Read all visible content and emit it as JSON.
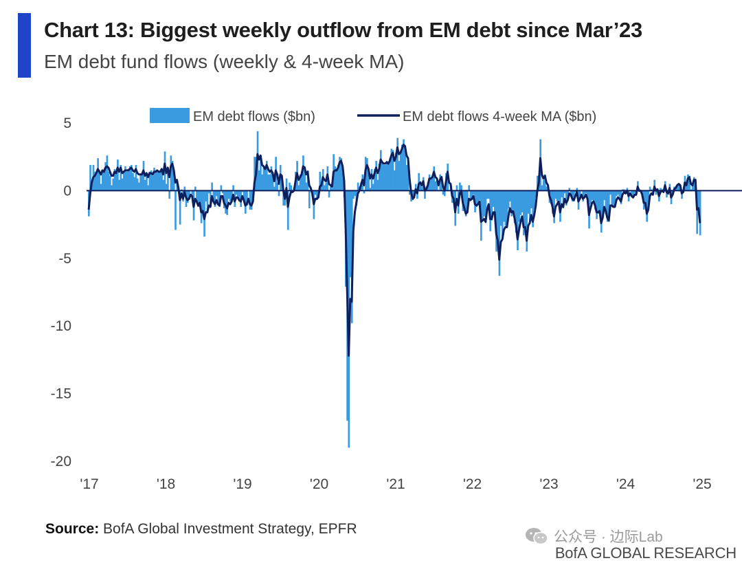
{
  "header": {
    "title": "Chart 13: Biggest weekly outflow from EM debt since Mar’23",
    "subtitle": "EM debt fund flows (weekly & 4-week MA)"
  },
  "footer": {
    "source_label": "Source:",
    "source_text": " BofA Global Investment Strategy, EPFR",
    "watermark": "公众号 · 边际Lab",
    "brand": "BofA GLOBAL RESEARCH"
  },
  "colors": {
    "accent": "#1f44c9",
    "bars": "#3b9be0",
    "ma_line": "#0d1f5c",
    "zero_line": "#0d1f5c"
  },
  "chart_data": {
    "type": "bar+line",
    "title": "EM debt fund flows (weekly & 4-week MA)",
    "xlabel": "",
    "ylabel": "",
    "ylim": [
      -20,
      5
    ],
    "yticks": [
      5,
      0,
      -5,
      -10,
      -15,
      -20
    ],
    "ytick_labels": [
      "5",
      "0",
      "-5",
      "-10",
      "-15",
      "-20"
    ],
    "xlim": [
      2017,
      2025
    ],
    "xticks": [
      2017,
      2018,
      2019,
      2020,
      2021,
      2022,
      2023,
      2024,
      2025
    ],
    "xtick_labels": [
      "'17",
      "'18",
      "'19",
      "'20",
      "'21",
      "'22",
      "'23",
      "'24",
      "'25"
    ],
    "legend": {
      "position": "top",
      "entries": [
        "EM debt flows ($bn)",
        "EM debt flows 4-week MA ($bn)"
      ]
    },
    "series": [
      {
        "name": "EM debt flows ($bn)",
        "type": "bar",
        "frequency": "weekly",
        "start": 2017.0,
        "values": [
          -1.9,
          1.9,
          0.5,
          1.9,
          1.4,
          1.2,
          2.4,
          1.5,
          0.5,
          1.5,
          1.5,
          2.1,
          2.6,
          1.4,
          1.1,
          0.4,
          0.9,
          1.6,
          1.3,
          2.3,
          0.8,
          1.9,
          0.9,
          1.4,
          1.8,
          1.4,
          1.6,
          1.8,
          1.9,
          1.3,
          1.0,
          1.9,
          0.9,
          0.6,
          1.2,
          1.2,
          2.2,
          0.8,
          1.3,
          0.4,
          1.4,
          1.5,
          1.1,
          1.7,
          1.5,
          1.5,
          1.4,
          1.4,
          1.6,
          0.8,
          2.9,
          0.5,
          1.7,
          -0.6,
          2.6,
          2.2,
          1.3,
          -2.9,
          0.7,
          0.2,
          -2.5,
          0.1,
          -0.8,
          0.3,
          -1.2,
          -0.9,
          -0.5,
          0.0,
          -0.3,
          -2.2,
          0.3,
          -0.8,
          -1.2,
          -0.9,
          -2.4,
          -1.5,
          -3.4,
          -0.8,
          -1.6,
          -0.2,
          -1.2,
          0.6,
          -0.7,
          -1.2,
          -0.4,
          -1.0,
          -1.2,
          0.4,
          -0.2,
          -1.3,
          -1.7,
          -1.8,
          -0.6,
          -0.8,
          -0.6,
          0.4,
          -1.2,
          -0.3,
          -0.5,
          -0.8,
          -1.2,
          -0.1,
          -0.8,
          -1.7,
          -1.1,
          0.0,
          -1.4,
          -1.4,
          -0.7,
          2.5,
          2.5,
          4.4,
          1.5,
          2.6,
          1.2,
          1.7,
          1.7,
          2.2,
          1.2,
          1.2,
          1.8,
          1.2,
          0.3,
          2.5,
          0.6,
          -0.4,
          1.9,
          0.9,
          -1.1,
          -1.1,
          0.9,
          -2.9,
          0.6,
          0.4,
          -0.1,
          0.2,
          1.4,
          2.2,
          0.4,
          1.2,
          1.4,
          2.6,
          1.8,
          0.6,
          1.5,
          -1.3,
          0.0,
          -0.2,
          -2.1,
          -0.3,
          -0.7,
          -0.4,
          1.4,
          0.4,
          1.6,
          0.4,
          0.6,
          1.8,
          -0.5,
          0.3,
          0.2,
          2.7,
          1.8,
          1.5,
          1.9,
          2.5,
          2.4,
          1.3,
          -0.5,
          -7.1,
          -17.0,
          -19.0,
          -6.4,
          -9.8,
          -0.6,
          -0.4,
          -1.1,
          0.6,
          0.3,
          0.6,
          1.2,
          -0.2,
          2.5,
          2.4,
          1.3,
          0.2,
          1.6,
          0.5,
          1.6,
          2.2,
          0.8,
          2.0,
          3.0,
          2.0,
          1.9,
          1.9,
          2.2,
          2.0,
          2.4,
          3.1,
          3.0,
          1.5,
          2.8,
          3.9,
          2.2,
          2.8,
          3.4,
          3.8,
          3.3,
          1.9,
          2.4,
          -0.3,
          -0.8,
          -0.7,
          -0.3,
          0.5,
          -0.6,
          1.3,
          0.7,
          0.3,
          1.0,
          -0.6,
          0.3,
          0.6,
          1.2,
          0.9,
          1.0,
          1.8,
          0.7,
          0.8,
          0.0,
          1.2,
          1.1,
          -0.3,
          -0.4,
          1.3,
          2.0,
          0.0,
          0.5,
          -0.9,
          -0.6,
          -2.6,
          0.4,
          -1.7,
          0.6,
          0.4,
          -1.5,
          -1.5,
          -1.9,
          -1.6,
          0.4,
          -0.7,
          -0.5,
          -0.3,
          -1.6,
          -1.2,
          -0.9,
          -0.7,
          -3.7,
          -2.1,
          -1.9,
          -2.4,
          -0.6,
          -0.6,
          -3.0,
          -2.2,
          -1.2,
          -1.6,
          -4.5,
          -4.2,
          -6.3,
          -2.6,
          -3.4,
          -2.3,
          -2.6,
          -2.7,
          -1.3,
          -0.8,
          -1.9,
          -1.4,
          -2.4,
          -3.1,
          -4.4,
          -2.3,
          -1.8,
          -1.6,
          -3.3,
          -2.8,
          -4.5,
          -1.7,
          -2.2,
          -1.3,
          -2.7,
          -1.4,
          -0.5,
          1.1,
          1.1,
          3.8,
          0.4,
          0.8,
          1.2,
          0.3,
          0.3,
          -0.9,
          -1.0,
          -1.7,
          -2.4,
          -0.6,
          -0.8,
          -0.7,
          -2.3,
          -0.5,
          -1.3,
          -0.2,
          -1.1,
          -0.6,
          0.2,
          -0.4,
          -0.8,
          -0.8,
          -0.1,
          0.2,
          -1.4,
          -0.4,
          0.0,
          -0.8,
          -0.5,
          -0.2,
          -0.8,
          -2.8,
          -1.0,
          -0.7,
          -0.8,
          -1.4,
          -2.1,
          -1.7,
          -1.5,
          -3.1,
          -1.8,
          -0.7,
          -1.7,
          -2.3,
          -2.3,
          -0.3,
          -1.1,
          -1.2,
          -1.2,
          -0.4,
          -0.3,
          -0.6,
          -1.0,
          0.1,
          0.1,
          -0.2,
          0.2,
          -0.8,
          0.0,
          -0.4,
          -0.5,
          -0.2,
          -0.3,
          0.7,
          -0.1,
          0.0,
          -0.5,
          -1.4,
          -0.9,
          -2.3,
          -1.2,
          0.3,
          0.1,
          -0.3,
          0.8,
          -0.3,
          0.1,
          -0.8,
          0.2,
          0.1,
          -0.1,
          0.7,
          -0.5,
          -0.3,
          0.5,
          -1.0,
          -0.1,
          0.3,
          0.3,
          0.4,
          0.5,
          0.4,
          -0.6,
          0.0,
          1.1,
          0.4,
          1.2,
          1.1,
          0.1,
          0.4,
          1.0,
          0.7,
          -3.2,
          -1.3,
          -3.3
        ]
      },
      {
        "name": "EM debt flows 4-week MA ($bn)",
        "type": "line",
        "frequency": "weekly",
        "start": 2017.0,
        "values": [
          -1.4,
          -0.2,
          0.6,
          1.0,
          1.1,
          1.3,
          1.6,
          1.4,
          1.2,
          1.5,
          1.4,
          1.7,
          1.8,
          1.7,
          1.4,
          1.1,
          1.1,
          1.4,
          1.3,
          1.7,
          1.4,
          1.7,
          1.3,
          1.4,
          1.5,
          1.5,
          1.5,
          1.6,
          1.7,
          1.5,
          1.4,
          1.6,
          1.3,
          1.2,
          1.2,
          1.2,
          1.5,
          1.1,
          1.3,
          1.0,
          1.3,
          1.3,
          1.2,
          1.4,
          1.4,
          1.5,
          1.4,
          1.4,
          1.6,
          1.2,
          2.0,
          1.3,
          1.7,
          1.0,
          1.8,
          2.0,
          1.5,
          0.6,
          0.8,
          0.2,
          -0.7,
          -0.2,
          -0.6,
          -0.1,
          -0.5,
          -0.7,
          -0.6,
          -0.3,
          -0.4,
          -1.2,
          -0.6,
          -0.8,
          -1.1,
          -0.9,
          -1.6,
          -1.5,
          -2.1,
          -1.6,
          -1.6,
          -1.1,
          -1.2,
          -0.4,
          -0.8,
          -1.0,
          -0.7,
          -1.0,
          -1.1,
          -0.4,
          -0.4,
          -0.9,
          -1.1,
          -1.3,
          -0.9,
          -1.0,
          -0.8,
          -0.3,
          -0.8,
          -0.5,
          -0.5,
          -0.7,
          -0.8,
          -0.4,
          -0.7,
          -1.1,
          -1.0,
          -0.6,
          -1.0,
          -1.1,
          -0.8,
          0.6,
          1.2,
          2.7,
          2.3,
          2.6,
          1.9,
          1.8,
          1.6,
          1.9,
          1.6,
          1.4,
          1.5,
          1.3,
          0.7,
          1.5,
          1.2,
          0.5,
          1.2,
          1.1,
          0.0,
          -0.6,
          0.2,
          -1.2,
          -0.5,
          -0.1,
          -0.1,
          0.0,
          0.7,
          1.3,
          0.8,
          1.0,
          1.2,
          1.8,
          1.7,
          1.2,
          1.4,
          0.4,
          0.2,
          -0.2,
          -1.0,
          -0.6,
          -0.6,
          -0.5,
          0.3,
          0.4,
          1.0,
          0.8,
          0.7,
          1.2,
          0.5,
          0.4,
          0.3,
          1.4,
          1.5,
          1.5,
          1.7,
          2.1,
          2.2,
          1.8,
          0.7,
          -2.9,
          -7.6,
          -12.2,
          -8.0,
          -8.2,
          -3.0,
          -1.6,
          -0.9,
          -0.2,
          0.0,
          0.4,
          0.8,
          0.4,
          1.5,
          1.9,
          1.6,
          0.9,
          1.2,
          0.9,
          1.3,
          1.7,
          1.3,
          1.6,
          2.3,
          2.1,
          2.0,
          2.0,
          2.1,
          2.0,
          2.2,
          2.6,
          2.8,
          2.2,
          2.5,
          3.2,
          2.7,
          2.8,
          3.1,
          3.4,
          3.3,
          2.6,
          2.4,
          0.9,
          -0.1,
          -0.6,
          -0.5,
          0.1,
          -0.2,
          0.5,
          0.6,
          0.4,
          0.7,
          0.0,
          0.1,
          0.4,
          0.9,
          0.9,
          1.0,
          1.4,
          1.0,
          0.9,
          0.4,
          0.8,
          1.0,
          0.3,
          0.0,
          0.7,
          1.4,
          0.6,
          0.5,
          -0.4,
          -0.6,
          -1.6,
          -0.6,
          -1.1,
          -0.2,
          0.0,
          -0.9,
          -1.3,
          -1.7,
          -1.6,
          -0.6,
          -0.7,
          -0.6,
          -0.4,
          -1.0,
          -1.1,
          -1.0,
          -0.8,
          -2.3,
          -2.2,
          -2.1,
          -2.3,
          -1.4,
          -1.0,
          -2.1,
          -2.1,
          -1.6,
          -1.6,
          -3.2,
          -3.7,
          -5.1,
          -3.8,
          -3.6,
          -2.9,
          -2.7,
          -2.7,
          -1.9,
          -1.3,
          -1.6,
          -1.5,
          -2.0,
          -2.6,
          -3.6,
          -2.9,
          -2.3,
          -1.9,
          -2.7,
          -2.7,
          -3.7,
          -2.6,
          -2.4,
          -1.8,
          -2.3,
          -1.8,
          -1.1,
          0.0,
          0.6,
          2.4,
          1.2,
          0.9,
          1.1,
          0.6,
          0.4,
          -0.4,
          -0.7,
          -1.2,
          -1.9,
          -1.2,
          -1.0,
          -0.8,
          -1.6,
          -1.0,
          -1.2,
          -0.6,
          -0.9,
          -0.7,
          -0.2,
          -0.3,
          -0.6,
          -0.7,
          -0.4,
          -0.1,
          -0.8,
          -0.6,
          -0.3,
          -0.6,
          -0.5,
          -0.3,
          -0.6,
          -1.8,
          -1.3,
          -0.9,
          -0.8,
          -1.1,
          -1.6,
          -1.6,
          -1.5,
          -2.4,
          -2.0,
          -1.2,
          -1.5,
          -2.0,
          -2.2,
          -1.1,
          -1.1,
          -1.2,
          -1.2,
          -0.7,
          -0.5,
          -0.6,
          -0.8,
          -0.3,
          -0.1,
          -0.2,
          0.0,
          -0.4,
          -0.2,
          -0.4,
          -0.5,
          -0.3,
          -0.3,
          0.3,
          0.0,
          0.0,
          -0.3,
          -0.9,
          -0.9,
          -1.7,
          -1.4,
          -0.4,
          -0.2,
          -0.3,
          0.3,
          0.0,
          0.1,
          -0.4,
          -0.1,
          0.0,
          -0.1,
          0.4,
          -0.1,
          -0.2,
          0.2,
          -0.5,
          -0.3,
          0.1,
          0.2,
          0.4,
          0.5,
          0.4,
          -0.2,
          -0.1,
          0.6,
          0.4,
          0.9,
          1.0,
          0.5,
          0.4,
          0.8,
          0.8,
          -1.4,
          -1.3,
          -2.4
        ]
      }
    ]
  }
}
